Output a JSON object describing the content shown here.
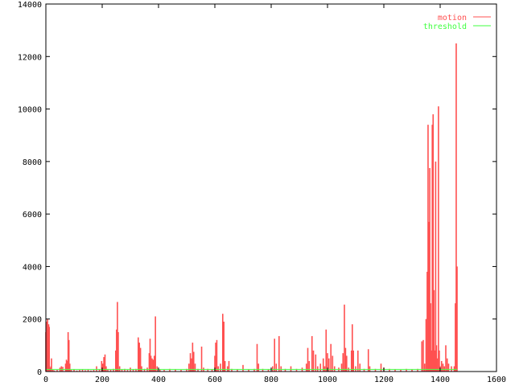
{
  "chart_data": {
    "type": "bar",
    "style": "impulses",
    "title": "",
    "xlabel": "",
    "ylabel": "",
    "xlim": [
      0,
      1600
    ],
    "ylim": [
      0,
      14000
    ],
    "xticks": [
      0,
      200,
      400,
      600,
      800,
      1000,
      1200,
      1400,
      1600
    ],
    "yticks": [
      0,
      2000,
      4000,
      6000,
      8000,
      10000,
      12000,
      14000
    ],
    "grid": false,
    "legend_position": "top-right",
    "series": [
      {
        "name": "motion",
        "color": "#ff5050",
        "points": [
          [
            0,
            1500
          ],
          [
            2,
            1900
          ],
          [
            4,
            1700
          ],
          [
            6,
            2000
          ],
          [
            8,
            1600
          ],
          [
            10,
            1800
          ],
          [
            12,
            1700
          ],
          [
            15,
            150
          ],
          [
            18,
            200
          ],
          [
            20,
            500
          ],
          [
            25,
            60
          ],
          [
            30,
            40
          ],
          [
            40,
            60
          ],
          [
            50,
            150
          ],
          [
            55,
            200
          ],
          [
            60,
            180
          ],
          [
            70,
            300
          ],
          [
            73,
            450
          ],
          [
            76,
            400
          ],
          [
            79,
            1500
          ],
          [
            82,
            1200
          ],
          [
            85,
            300
          ],
          [
            90,
            60
          ],
          [
            100,
            80
          ],
          [
            110,
            40
          ],
          [
            120,
            60
          ],
          [
            130,
            90
          ],
          [
            140,
            50
          ],
          [
            150,
            70
          ],
          [
            160,
            40
          ],
          [
            170,
            60
          ],
          [
            180,
            200
          ],
          [
            190,
            80
          ],
          [
            198,
            400
          ],
          [
            202,
            300
          ],
          [
            206,
            550
          ],
          [
            210,
            650
          ],
          [
            214,
            200
          ],
          [
            220,
            80
          ],
          [
            230,
            60
          ],
          [
            240,
            100
          ],
          [
            248,
            800
          ],
          [
            251,
            1600
          ],
          [
            254,
            2650
          ],
          [
            257,
            1500
          ],
          [
            262,
            200
          ],
          [
            270,
            80
          ],
          [
            280,
            100
          ],
          [
            290,
            60
          ],
          [
            300,
            150
          ],
          [
            310,
            80
          ],
          [
            320,
            100
          ],
          [
            328,
            1300
          ],
          [
            332,
            1100
          ],
          [
            336,
            900
          ],
          [
            340,
            200
          ],
          [
            350,
            100
          ],
          [
            360,
            150
          ],
          [
            367,
            700
          ],
          [
            370,
            1250
          ],
          [
            373,
            600
          ],
          [
            377,
            500
          ],
          [
            381,
            450
          ],
          [
            385,
            600
          ],
          [
            389,
            2100
          ],
          [
            395,
            200
          ],
          [
            405,
            80
          ],
          [
            420,
            60
          ],
          [
            440,
            100
          ],
          [
            460,
            80
          ],
          [
            480,
            60
          ],
          [
            500,
            100
          ],
          [
            508,
            300
          ],
          [
            513,
            700
          ],
          [
            517,
            500
          ],
          [
            521,
            1100
          ],
          [
            525,
            750
          ],
          [
            530,
            300
          ],
          [
            540,
            100
          ],
          [
            553,
            950
          ],
          [
            560,
            150
          ],
          [
            575,
            100
          ],
          [
            590,
            80
          ],
          [
            600,
            600
          ],
          [
            603,
            1100
          ],
          [
            607,
            1200
          ],
          [
            612,
            200
          ],
          [
            620,
            300
          ],
          [
            628,
            2200
          ],
          [
            632,
            1900
          ],
          [
            636,
            400
          ],
          [
            645,
            200
          ],
          [
            650,
            400
          ],
          [
            660,
            100
          ],
          [
            680,
            80
          ],
          [
            700,
            250
          ],
          [
            720,
            80
          ],
          [
            740,
            100
          ],
          [
            750,
            1050
          ],
          [
            755,
            300
          ],
          [
            770,
            100
          ],
          [
            790,
            80
          ],
          [
            805,
            200
          ],
          [
            812,
            1250
          ],
          [
            818,
            300
          ],
          [
            828,
            1350
          ],
          [
            835,
            200
          ],
          [
            850,
            100
          ],
          [
            870,
            200
          ],
          [
            890,
            100
          ],
          [
            910,
            150
          ],
          [
            925,
            300
          ],
          [
            930,
            900
          ],
          [
            935,
            400
          ],
          [
            945,
            1350
          ],
          [
            950,
            800
          ],
          [
            958,
            650
          ],
          [
            965,
            200
          ],
          [
            975,
            300
          ],
          [
            985,
            500
          ],
          [
            990,
            200
          ],
          [
            995,
            1600
          ],
          [
            1000,
            700
          ],
          [
            1005,
            500
          ],
          [
            1012,
            1050
          ],
          [
            1018,
            600
          ],
          [
            1025,
            200
          ],
          [
            1040,
            150
          ],
          [
            1050,
            300
          ],
          [
            1055,
            700
          ],
          [
            1060,
            2550
          ],
          [
            1064,
            900
          ],
          [
            1068,
            600
          ],
          [
            1075,
            150
          ],
          [
            1085,
            800
          ],
          [
            1088,
            1800
          ],
          [
            1092,
            800
          ],
          [
            1100,
            200
          ],
          [
            1108,
            800
          ],
          [
            1115,
            300
          ],
          [
            1130,
            100
          ],
          [
            1145,
            850
          ],
          [
            1150,
            200
          ],
          [
            1170,
            100
          ],
          [
            1190,
            300
          ],
          [
            1200,
            150
          ],
          [
            1220,
            100
          ],
          [
            1240,
            80
          ],
          [
            1260,
            60
          ],
          [
            1280,
            100
          ],
          [
            1300,
            80
          ],
          [
            1320,
            100
          ],
          [
            1335,
            1150
          ],
          [
            1340,
            1200
          ],
          [
            1345,
            300
          ],
          [
            1350,
            2000
          ],
          [
            1354,
            3800
          ],
          [
            1357,
            9400
          ],
          [
            1360,
            5700
          ],
          [
            1363,
            7750
          ],
          [
            1366,
            2600
          ],
          [
            1369,
            800
          ],
          [
            1372,
            9400
          ],
          [
            1375,
            9800
          ],
          [
            1378,
            3100
          ],
          [
            1381,
            800
          ],
          [
            1384,
            8000
          ],
          [
            1387,
            1000
          ],
          [
            1390,
            500
          ],
          [
            1394,
            10100
          ],
          [
            1397,
            800
          ],
          [
            1400,
            200
          ],
          [
            1405,
            400
          ],
          [
            1410,
            300
          ],
          [
            1415,
            200
          ],
          [
            1420,
            1000
          ],
          [
            1425,
            500
          ],
          [
            1430,
            300
          ],
          [
            1440,
            200
          ],
          [
            1450,
            200
          ],
          [
            1454,
            2600
          ],
          [
            1457,
            12500
          ],
          [
            1460,
            4000
          ]
        ]
      },
      {
        "name": "threshold",
        "color": "#40ff40",
        "points": [
          [
            0,
            80
          ],
          [
            1460,
            80
          ]
        ]
      }
    ]
  }
}
